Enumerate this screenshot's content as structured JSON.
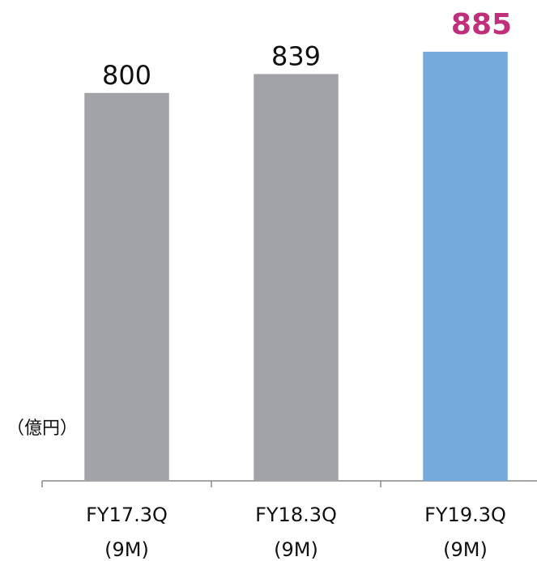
{
  "chart_data": {
    "type": "bar",
    "y_label": "（億円）",
    "categories": [
      [
        "FY17.3Q",
        "(9M)"
      ],
      [
        "FY18.3Q",
        "(9M)"
      ],
      [
        "FY19.3Q",
        "(9M)"
      ]
    ],
    "values": [
      800,
      839,
      885
    ],
    "colors": [
      "#a2a3a7",
      "#a2a3a7",
      "#74aadb"
    ],
    "value_label_colors": [
      "#111111",
      "#111111",
      "#c0307a"
    ],
    "ylim": [
      0,
      990
    ]
  }
}
